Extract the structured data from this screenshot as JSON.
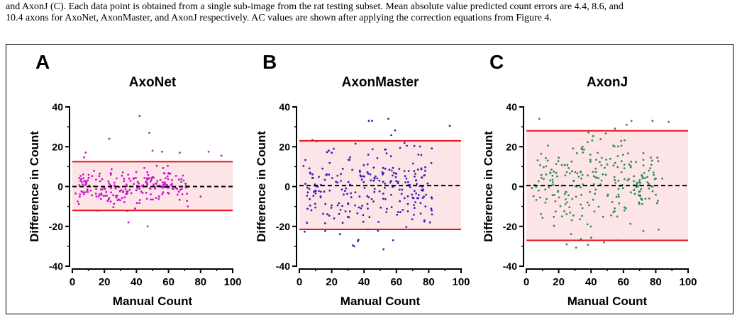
{
  "caption": {
    "line1": "and AxonJ (C). Each data point is obtained from a single sub-image from the rat testing subset. Mean absolute value predicted count errors are 4.4, 8.6, and",
    "line2": "10.4 axons for AxoNet, AxonMaster, and AxonJ respectively. AC values are shown after applying the correction equations from Figure 4."
  },
  "colors": {
    "band_fill": "#fde4e6",
    "limit_line": "#e8101c",
    "mean_line": "#000000"
  },
  "chart_data": [
    {
      "panel": "A",
      "type": "scatter",
      "title": "AxoNet",
      "xlabel": "Manual Count",
      "ylabel": "Difference in Count",
      "xlim": [
        0,
        100
      ],
      "ylim": [
        -40,
        40
      ],
      "xticks": [
        "0",
        "20",
        "40",
        "60",
        "80",
        "100"
      ],
      "yticks": [
        "-40",
        "-20",
        "0",
        "20",
        "40"
      ],
      "point_color": "#c313c8",
      "mean": 0,
      "upper_limit": 12.5,
      "lower_limit": -12,
      "spread_sd": 4.8,
      "spread_max_x": 72,
      "n_points": 230,
      "seed": 11,
      "extra_points": [
        [
          42,
          35.5
        ],
        [
          23,
          24
        ],
        [
          48,
          27
        ],
        [
          93,
          15.5
        ],
        [
          85,
          17.5
        ],
        [
          67,
          17
        ],
        [
          56,
          17.5
        ],
        [
          50,
          18
        ],
        [
          47,
          -20
        ],
        [
          35,
          -18
        ],
        [
          72,
          -10
        ],
        [
          80,
          -5
        ]
      ]
    },
    {
      "panel": "B",
      "type": "scatter",
      "title": "AxonMaster",
      "xlabel": "Manual Count",
      "ylabel": "Difference in Count",
      "xlim": [
        0,
        100
      ],
      "ylim": [
        -40,
        40
      ],
      "xticks": [
        "0",
        "20",
        "40",
        "60",
        "80",
        "100"
      ],
      "yticks": [
        "-40",
        "-20",
        "0",
        "20",
        "40"
      ],
      "point_color": "#3322b8",
      "mean": 0.5,
      "upper_limit": 23,
      "lower_limit": -21.5,
      "spread_sd": 11,
      "spread_max_x": 82,
      "n_points": 260,
      "seed": 23,
      "extra_points": [
        [
          93,
          30.5
        ],
        [
          55,
          34
        ],
        [
          45,
          33
        ],
        [
          43,
          33
        ],
        [
          34,
          -30
        ],
        [
          33,
          -29.5
        ],
        [
          52,
          -31.5
        ],
        [
          78,
          -10
        ],
        [
          82,
          -14
        ],
        [
          58,
          -27
        ]
      ]
    },
    {
      "panel": "C",
      "type": "scatter",
      "title": "AxonJ",
      "xlabel": "Manual Count",
      "ylabel": "Difference in Count",
      "xlim": [
        0,
        100
      ],
      "ylim": [
        -40,
        40
      ],
      "xticks": [
        "0",
        "20",
        "40",
        "60",
        "80",
        "100"
      ],
      "yticks": [
        "-40",
        "-20",
        "0",
        "20",
        "40"
      ],
      "point_color": "#2e8b57",
      "mean": 0.5,
      "upper_limit": 28,
      "lower_limit": -27,
      "spread_sd": 12.5,
      "spread_max_x": 82,
      "n_points": 260,
      "seed": 37,
      "extra_points": [
        [
          65,
          33
        ],
        [
          78,
          33
        ],
        [
          88,
          32.5
        ],
        [
          62,
          31
        ],
        [
          25,
          -29
        ],
        [
          48,
          -28
        ],
        [
          76,
          -6
        ],
        [
          84,
          4
        ]
      ]
    }
  ]
}
